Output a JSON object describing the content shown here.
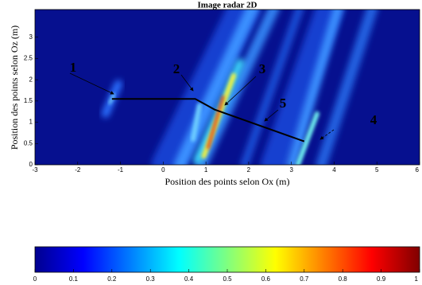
{
  "chart_data": {
    "type": "heatmap",
    "title": "Image radar 2D",
    "x_label": "Position des points selon Ox (m)",
    "y_label": "Position des points selon Oz (m)",
    "xlim": [
      -3,
      6
    ],
    "xticks": [
      -3,
      -2,
      -1,
      0,
      1,
      2,
      3,
      4,
      5,
      6
    ],
    "ylim": [
      0,
      3.65
    ],
    "yticks": [
      0,
      0.5,
      1,
      1.5,
      2,
      2.5,
      3
    ],
    "annotations": [
      "1",
      "2",
      "3",
      "4",
      "5"
    ],
    "colorbar": {
      "lim": [
        0,
        1
      ],
      "ticks": [
        0,
        0.1,
        0.2,
        0.3,
        0.4,
        0.5,
        0.6,
        0.7,
        0.8,
        0.9,
        1
      ]
    }
  }
}
